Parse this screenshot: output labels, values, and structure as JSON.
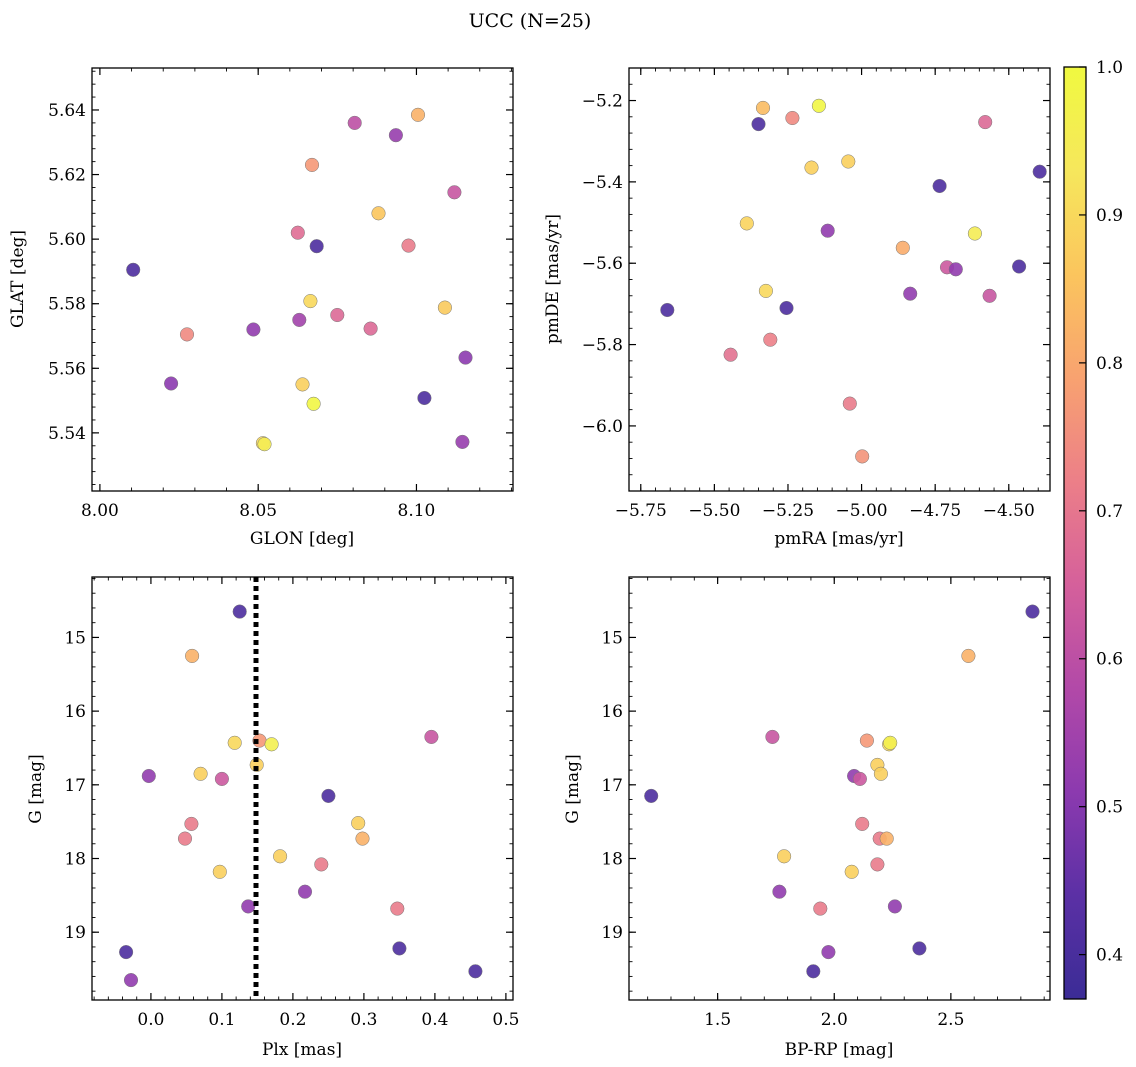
{
  "figure": {
    "title": "UCC (N=25)"
  },
  "colorbar": {
    "min": 0.37,
    "max": 1.0,
    "ticks": [
      0.4,
      0.5,
      0.6,
      0.7,
      0.8,
      0.9,
      1.0
    ],
    "tick_labels": [
      "0.4",
      "0.5",
      "0.6",
      "0.7",
      "0.8",
      "0.9",
      "1.0"
    ],
    "colormap": "plasma",
    "colormap_stops": [
      "#3b2c96",
      "#5b30a5",
      "#8c3aaf",
      "#b249a8",
      "#d5609b",
      "#ec7f88",
      "#f8a270",
      "#fbc55d",
      "#f6e75c",
      "#f0f940"
    ]
  },
  "chart_data": [
    {
      "type": "scatter",
      "name": "positions",
      "xlabel": "GLON [deg]",
      "ylabel": "GLAT [deg]",
      "xlim": [
        7.9975,
        8.1305
      ],
      "ylim": [
        5.522,
        5.653
      ],
      "x_ticks": [
        8.0,
        8.05,
        8.1
      ],
      "x_tick_labels": [
        "8.00",
        "8.05",
        "8.10"
      ],
      "y_ticks": [
        5.54,
        5.56,
        5.58,
        5.6,
        5.62,
        5.64
      ],
      "y_tick_labels": [
        "5.54",
        "5.56",
        "5.58",
        "5.60",
        "5.62",
        "5.64"
      ],
      "points": [
        {
          "x": 8.0105,
          "y": 5.5905,
          "c": 0.41
        },
        {
          "x": 8.0225,
          "y": 5.5553,
          "c": 0.51
        },
        {
          "x": 8.0275,
          "y": 5.5705,
          "c": 0.74
        },
        {
          "x": 8.0485,
          "y": 5.572,
          "c": 0.52
        },
        {
          "x": 8.0515,
          "y": 5.5368,
          "c": 0.9
        },
        {
          "x": 8.052,
          "y": 5.5365,
          "c": 0.95
        },
        {
          "x": 8.0625,
          "y": 5.602,
          "c": 0.68
        },
        {
          "x": 8.063,
          "y": 5.575,
          "c": 0.55
        },
        {
          "x": 8.064,
          "y": 5.555,
          "c": 0.88
        },
        {
          "x": 8.0665,
          "y": 5.5808,
          "c": 0.9
        },
        {
          "x": 8.067,
          "y": 5.623,
          "c": 0.77
        },
        {
          "x": 8.0675,
          "y": 5.549,
          "c": 0.99
        },
        {
          "x": 8.0685,
          "y": 5.5978,
          "c": 0.41
        },
        {
          "x": 8.075,
          "y": 5.5765,
          "c": 0.67
        },
        {
          "x": 8.0805,
          "y": 5.636,
          "c": 0.6
        },
        {
          "x": 8.0855,
          "y": 5.5723,
          "c": 0.67
        },
        {
          "x": 8.088,
          "y": 5.608,
          "c": 0.86
        },
        {
          "x": 8.0935,
          "y": 5.6322,
          "c": 0.53
        },
        {
          "x": 8.0975,
          "y": 5.598,
          "c": 0.71
        },
        {
          "x": 8.1005,
          "y": 5.6385,
          "c": 0.82
        },
        {
          "x": 8.1025,
          "y": 5.5508,
          "c": 0.41
        },
        {
          "x": 8.109,
          "y": 5.5788,
          "c": 0.87
        },
        {
          "x": 8.112,
          "y": 5.6145,
          "c": 0.62
        },
        {
          "x": 8.1145,
          "y": 5.5372,
          "c": 0.53
        },
        {
          "x": 8.1155,
          "y": 5.5633,
          "c": 0.51
        }
      ]
    },
    {
      "type": "scatter",
      "name": "proper-motions",
      "xlabel": "pmRA [mas/yr]",
      "ylabel": "pmDE [mas/yr]",
      "xlim": [
        -5.79,
        -4.36
      ],
      "ylim": [
        -6.16,
        -5.12
      ],
      "x_ticks": [
        -5.75,
        -5.5,
        -5.25,
        -5.0,
        -4.75,
        -4.5
      ],
      "x_tick_labels": [
        "−5.75",
        "−5.50",
        "−5.25",
        "−5.00",
        "−4.75",
        "−4.50"
      ],
      "y_ticks": [
        -6.0,
        -5.8,
        -5.6,
        -5.4,
        -5.2
      ],
      "y_tick_labels": [
        "−6.0",
        "−5.8",
        "−5.6",
        "−5.4",
        "−5.2"
      ],
      "points": [
        {
          "x": -5.66,
          "y": -5.715,
          "c": 0.41
        },
        {
          "x": -5.445,
          "y": -5.825,
          "c": 0.69
        },
        {
          "x": -5.39,
          "y": -5.502,
          "c": 0.89
        },
        {
          "x": -5.35,
          "y": -5.258,
          "c": 0.41
        },
        {
          "x": -5.335,
          "y": -5.218,
          "c": 0.84
        },
        {
          "x": -5.325,
          "y": -5.668,
          "c": 0.9
        },
        {
          "x": -5.31,
          "y": -5.788,
          "c": 0.72
        },
        {
          "x": -5.255,
          "y": -5.71,
          "c": 0.41
        },
        {
          "x": -5.235,
          "y": -5.243,
          "c": 0.74
        },
        {
          "x": -5.17,
          "y": -5.365,
          "c": 0.88
        },
        {
          "x": -5.145,
          "y": -5.213,
          "c": 0.99
        },
        {
          "x": -5.115,
          "y": -5.52,
          "c": 0.52
        },
        {
          "x": -5.045,
          "y": -5.35,
          "c": 0.88
        },
        {
          "x": -5.04,
          "y": -5.945,
          "c": 0.71
        },
        {
          "x": -4.998,
          "y": -6.075,
          "c": 0.76
        },
        {
          "x": -4.86,
          "y": -5.562,
          "c": 0.81
        },
        {
          "x": -4.835,
          "y": -5.675,
          "c": 0.52
        },
        {
          "x": -4.735,
          "y": -5.41,
          "c": 0.41
        },
        {
          "x": -4.71,
          "y": -5.61,
          "c": 0.63
        },
        {
          "x": -4.68,
          "y": -5.615,
          "c": 0.52
        },
        {
          "x": -4.615,
          "y": -5.527,
          "c": 0.95
        },
        {
          "x": -4.58,
          "y": -5.253,
          "c": 0.67
        },
        {
          "x": -4.565,
          "y": -5.68,
          "c": 0.62
        },
        {
          "x": -4.465,
          "y": -5.608,
          "c": 0.41
        },
        {
          "x": -4.395,
          "y": -5.375,
          "c": 0.41
        }
      ]
    },
    {
      "type": "scatter",
      "name": "g-vs-plx",
      "xlabel": "Plx [mas]",
      "ylabel": "G [mag]",
      "xlim": [
        -0.083,
        0.51
      ],
      "ylim": [
        19.92,
        14.18
      ],
      "x_ticks": [
        0.0,
        0.1,
        0.2,
        0.3,
        0.4,
        0.5
      ],
      "x_tick_labels": [
        "0.0",
        "0.1",
        "0.2",
        "0.3",
        "0.4",
        "0.5"
      ],
      "y_ticks": [
        15,
        16,
        17,
        18,
        19
      ],
      "y_tick_labels": [
        "15",
        "16",
        "17",
        "18",
        "19"
      ],
      "vline": 0.148,
      "points": [
        {
          "x": -0.035,
          "y": 19.27,
          "c": 0.41
        },
        {
          "x": -0.028,
          "y": 19.65,
          "c": 0.52
        },
        {
          "x": -0.003,
          "y": 16.88,
          "c": 0.52
        },
        {
          "x": 0.048,
          "y": 17.73,
          "c": 0.71
        },
        {
          "x": 0.057,
          "y": 17.53,
          "c": 0.71
        },
        {
          "x": 0.058,
          "y": 15.25,
          "c": 0.82
        },
        {
          "x": 0.07,
          "y": 16.85,
          "c": 0.88
        },
        {
          "x": 0.097,
          "y": 18.18,
          "c": 0.88
        },
        {
          "x": 0.1,
          "y": 16.92,
          "c": 0.63
        },
        {
          "x": 0.118,
          "y": 16.43,
          "c": 0.9
        },
        {
          "x": 0.125,
          "y": 14.65,
          "c": 0.41
        },
        {
          "x": 0.137,
          "y": 18.65,
          "c": 0.52
        },
        {
          "x": 0.149,
          "y": 16.73,
          "c": 0.88
        },
        {
          "x": 0.153,
          "y": 16.4,
          "c": 0.77
        },
        {
          "x": 0.17,
          "y": 16.45,
          "c": 0.96
        },
        {
          "x": 0.182,
          "y": 17.97,
          "c": 0.88
        },
        {
          "x": 0.217,
          "y": 18.45,
          "c": 0.52
        },
        {
          "x": 0.24,
          "y": 18.08,
          "c": 0.71
        },
        {
          "x": 0.25,
          "y": 17.15,
          "c": 0.41
        },
        {
          "x": 0.292,
          "y": 17.52,
          "c": 0.88
        },
        {
          "x": 0.298,
          "y": 17.73,
          "c": 0.82
        },
        {
          "x": 0.347,
          "y": 18.68,
          "c": 0.71
        },
        {
          "x": 0.35,
          "y": 19.22,
          "c": 0.41
        },
        {
          "x": 0.395,
          "y": 16.35,
          "c": 0.62
        },
        {
          "x": 0.457,
          "y": 19.53,
          "c": 0.41
        }
      ]
    },
    {
      "type": "scatter",
      "name": "cmd",
      "xlabel": "BP-RP [mag]",
      "ylabel": "G [mag]",
      "xlim": [
        1.12,
        2.925
      ],
      "ylim": [
        19.92,
        14.18
      ],
      "x_ticks": [
        1.5,
        2.0,
        2.5
      ],
      "x_tick_labels": [
        "1.5",
        "2.0",
        "2.5"
      ],
      "y_ticks": [
        15,
        16,
        17,
        18,
        19
      ],
      "y_tick_labels": [
        "15",
        "16",
        "17",
        "18",
        "19"
      ],
      "points": [
        {
          "x": 1.215,
          "y": 17.15,
          "c": 0.41
        },
        {
          "x": 1.735,
          "y": 16.35,
          "c": 0.62
        },
        {
          "x": 1.765,
          "y": 18.45,
          "c": 0.52
        },
        {
          "x": 1.785,
          "y": 17.97,
          "c": 0.88
        },
        {
          "x": 1.91,
          "y": 19.53,
          "c": 0.41
        },
        {
          "x": 1.94,
          "y": 18.68,
          "c": 0.71
        },
        {
          "x": 1.975,
          "y": 19.27,
          "c": 0.52
        },
        {
          "x": 2.075,
          "y": 18.18,
          "c": 0.88
        },
        {
          "x": 2.085,
          "y": 16.88,
          "c": 0.52
        },
        {
          "x": 2.11,
          "y": 16.92,
          "c": 0.63
        },
        {
          "x": 2.12,
          "y": 17.53,
          "c": 0.71
        },
        {
          "x": 2.14,
          "y": 16.4,
          "c": 0.77
        },
        {
          "x": 2.185,
          "y": 16.73,
          "c": 0.88
        },
        {
          "x": 2.185,
          "y": 18.08,
          "c": 0.71
        },
        {
          "x": 2.195,
          "y": 17.73,
          "c": 0.71
        },
        {
          "x": 2.2,
          "y": 16.85,
          "c": 0.88
        },
        {
          "x": 2.225,
          "y": 17.73,
          "c": 0.82
        },
        {
          "x": 2.235,
          "y": 16.45,
          "c": 0.9
        },
        {
          "x": 2.24,
          "y": 16.43,
          "c": 0.96
        },
        {
          "x": 2.26,
          "y": 18.65,
          "c": 0.52
        },
        {
          "x": 2.365,
          "y": 19.22,
          "c": 0.41
        },
        {
          "x": 2.575,
          "y": 15.25,
          "c": 0.82
        },
        {
          "x": 2.85,
          "y": 14.65,
          "c": 0.41
        }
      ]
    }
  ]
}
